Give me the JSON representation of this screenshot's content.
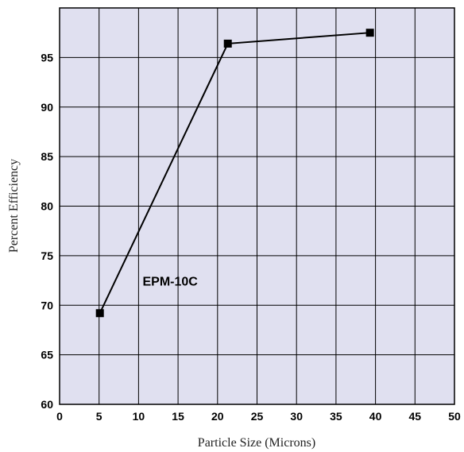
{
  "chart_data": {
    "type": "line",
    "title": "",
    "xlabel": "Particle Size (Microns)",
    "ylabel": "Percent Efficiency",
    "xlim": [
      0,
      50
    ],
    "ylim": [
      60,
      100
    ],
    "x_ticks": [
      0,
      5,
      10,
      15,
      20,
      25,
      30,
      35,
      40,
      45,
      50
    ],
    "y_ticks": [
      60,
      65,
      70,
      75,
      80,
      85,
      90,
      95
    ],
    "grid": true,
    "background_color": "#e0e0f0",
    "line_color": "#000000",
    "series": [
      {
        "points": [
          {
            "x": 5.1,
            "y": 69.2
          },
          {
            "x": 21.3,
            "y": 96.4
          },
          {
            "x": 39.3,
            "y": 97.5
          }
        ]
      }
    ],
    "annotations": [
      {
        "text": "EPM-10C",
        "x": 14,
        "y": 72
      }
    ]
  }
}
